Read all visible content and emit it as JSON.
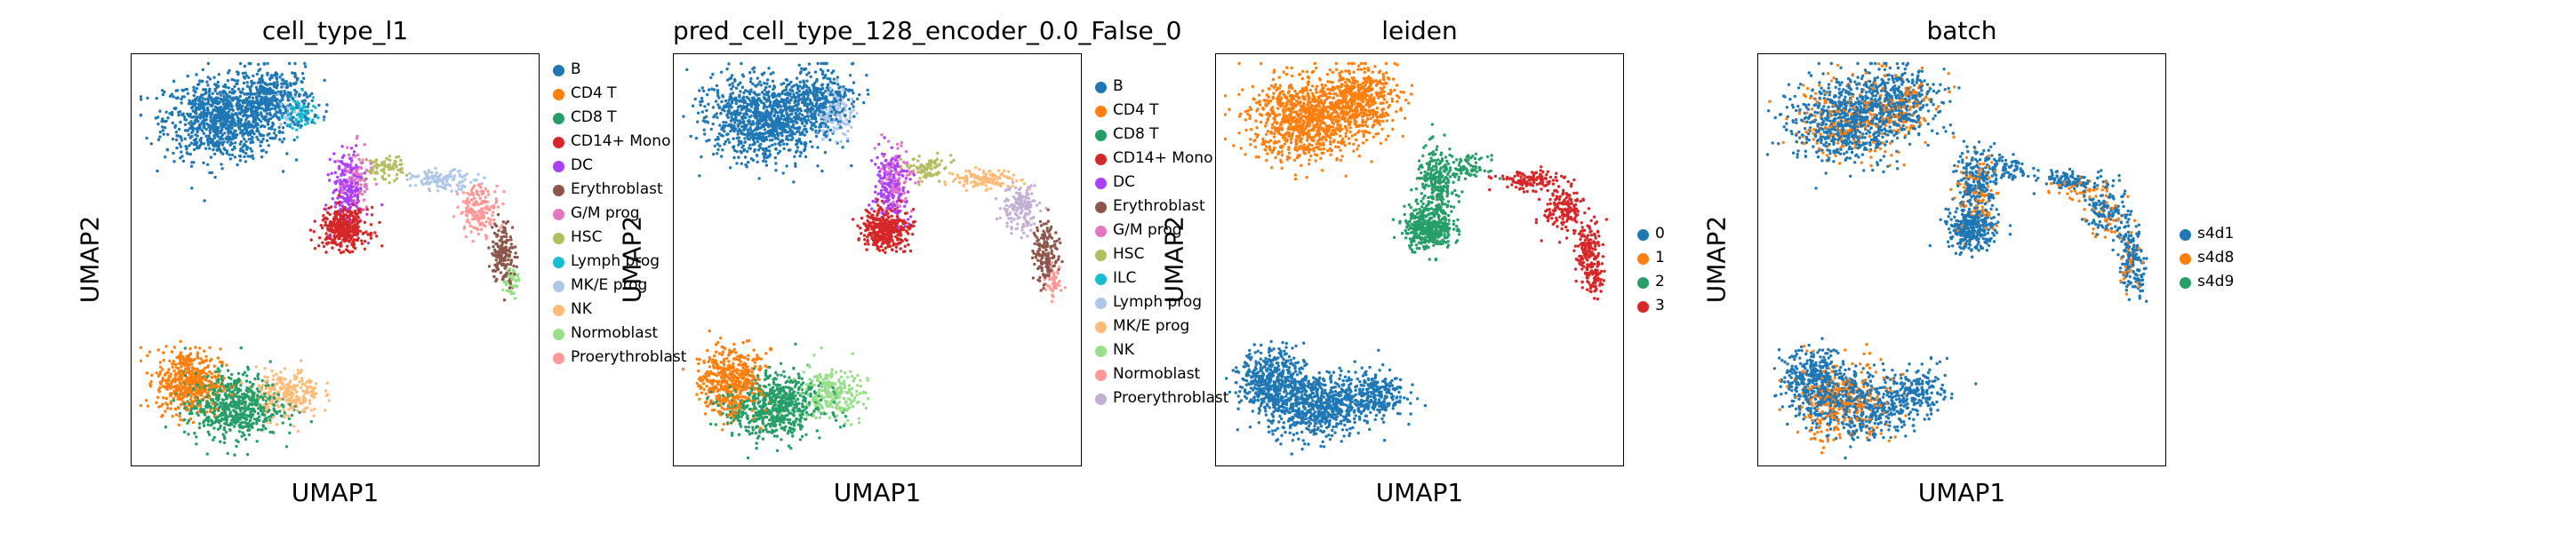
{
  "chart_data": [
    {
      "type": "scatter",
      "title": "cell_type_l1",
      "xlabel": "UMAP1",
      "ylabel": "UMAP2",
      "legend": [
        {
          "name": "B",
          "color": "#1f77b4"
        },
        {
          "name": "CD4 T",
          "color": "#ff7f0e"
        },
        {
          "name": "CD8 T",
          "color": "#279e68"
        },
        {
          "name": "CD14+ Mono",
          "color": "#d62728"
        },
        {
          "name": "DC",
          "color": "#aa40fc"
        },
        {
          "name": "Erythroblast",
          "color": "#8c564b"
        },
        {
          "name": "G/M prog",
          "color": "#e377c2"
        },
        {
          "name": "HSC",
          "color": "#b5bd61"
        },
        {
          "name": "Lymph prog",
          "color": "#17becf"
        },
        {
          "name": "MK/E prog",
          "color": "#aec7e8"
        },
        {
          "name": "NK",
          "color": "#ffbb78"
        },
        {
          "name": "Normoblast",
          "color": "#98df8a"
        },
        {
          "name": "Proerythroblast",
          "color": "#ff9896"
        }
      ],
      "legend_placement": "right",
      "grid": false,
      "clusters": [
        {
          "label": "B",
          "color": "#1f77b4",
          "x": 0.21,
          "y": 0.85,
          "sx": 0.07,
          "sy": 0.05,
          "n": 900
        },
        {
          "label": "B",
          "color": "#1f77b4",
          "x": 0.34,
          "y": 0.9,
          "sx": 0.05,
          "sy": 0.04,
          "n": 400
        },
        {
          "label": "Lymph prog",
          "color": "#17becf",
          "x": 0.41,
          "y": 0.86,
          "sx": 0.02,
          "sy": 0.025,
          "n": 70
        },
        {
          "label": "MK/E prog",
          "color": "#aec7e8",
          "x": 0.38,
          "y": 0.88,
          "sx": 0.02,
          "sy": 0.02,
          "n": 40
        },
        {
          "label": "CD4 T",
          "color": "#ff7f0e",
          "x": 0.13,
          "y": 0.2,
          "sx": 0.04,
          "sy": 0.04,
          "n": 500
        },
        {
          "label": "CD8 T",
          "color": "#279e68",
          "x": 0.24,
          "y": 0.14,
          "sx": 0.06,
          "sy": 0.04,
          "n": 650
        },
        {
          "label": "NK",
          "color": "#ffbb78",
          "x": 0.38,
          "y": 0.17,
          "sx": 0.04,
          "sy": 0.03,
          "n": 250
        },
        {
          "label": "CD14+ Mono",
          "color": "#d62728",
          "x": 0.52,
          "y": 0.58,
          "sx": 0.03,
          "sy": 0.025,
          "n": 380
        },
        {
          "label": "DC",
          "color": "#aa40fc",
          "x": 0.53,
          "y": 0.68,
          "sx": 0.02,
          "sy": 0.045,
          "n": 180
        },
        {
          "label": "G/M prog",
          "color": "#e377c2",
          "x": 0.55,
          "y": 0.7,
          "sx": 0.02,
          "sy": 0.04,
          "n": 90
        },
        {
          "label": "HSC",
          "color": "#b5bd61",
          "x": 0.62,
          "y": 0.73,
          "sx": 0.025,
          "sy": 0.015,
          "n": 80
        },
        {
          "label": "MK/E prog",
          "color": "#aec7e8",
          "x": 0.77,
          "y": 0.7,
          "sx": 0.04,
          "sy": 0.012,
          "n": 120
        },
        {
          "label": "Proerythroblast",
          "color": "#ff9896",
          "x": 0.86,
          "y": 0.63,
          "sx": 0.025,
          "sy": 0.03,
          "n": 160
        },
        {
          "label": "Erythroblast",
          "color": "#8c564b",
          "x": 0.92,
          "y": 0.52,
          "sx": 0.015,
          "sy": 0.04,
          "n": 160
        },
        {
          "label": "Normoblast",
          "color": "#98df8a",
          "x": 0.94,
          "y": 0.45,
          "sx": 0.01,
          "sy": 0.02,
          "n": 50
        }
      ]
    },
    {
      "type": "scatter",
      "title": "pred_cell_type_128_encoder_0.0_False_0",
      "xlabel": "UMAP1",
      "ylabel": "UMAP2",
      "legend": [
        {
          "name": "B",
          "color": "#1f77b4"
        },
        {
          "name": "CD4 T",
          "color": "#ff7f0e"
        },
        {
          "name": "CD8 T",
          "color": "#279e68"
        },
        {
          "name": "CD14+ Mono",
          "color": "#d62728"
        },
        {
          "name": "DC",
          "color": "#aa40fc"
        },
        {
          "name": "Erythroblast",
          "color": "#8c564b"
        },
        {
          "name": "G/M prog",
          "color": "#e377c2"
        },
        {
          "name": "HSC",
          "color": "#b5bd61"
        },
        {
          "name": "ILC",
          "color": "#17becf"
        },
        {
          "name": "Lymph prog",
          "color": "#aec7e8"
        },
        {
          "name": "MK/E prog",
          "color": "#ffbb78"
        },
        {
          "name": "NK",
          "color": "#98df8a"
        },
        {
          "name": "Normoblast",
          "color": "#ff9896"
        },
        {
          "name": "Proerythroblast",
          "color": "#c5b0d5"
        }
      ],
      "legend_placement": "right",
      "grid": false,
      "clusters": [
        {
          "label": "B",
          "color": "#1f77b4",
          "x": 0.21,
          "y": 0.85,
          "sx": 0.07,
          "sy": 0.05,
          "n": 900
        },
        {
          "label": "B",
          "color": "#1f77b4",
          "x": 0.34,
          "y": 0.9,
          "sx": 0.05,
          "sy": 0.04,
          "n": 380
        },
        {
          "label": "Lymph prog",
          "color": "#aec7e8",
          "x": 0.39,
          "y": 0.86,
          "sx": 0.025,
          "sy": 0.03,
          "n": 120
        },
        {
          "label": "CD4 T",
          "color": "#ff7f0e",
          "x": 0.13,
          "y": 0.2,
          "sx": 0.04,
          "sy": 0.04,
          "n": 500
        },
        {
          "label": "CD8 T",
          "color": "#279e68",
          "x": 0.24,
          "y": 0.14,
          "sx": 0.06,
          "sy": 0.04,
          "n": 650
        },
        {
          "label": "NK",
          "color": "#98df8a",
          "x": 0.38,
          "y": 0.17,
          "sx": 0.04,
          "sy": 0.03,
          "n": 250
        },
        {
          "label": "CD14+ Mono",
          "color": "#d62728",
          "x": 0.52,
          "y": 0.58,
          "sx": 0.03,
          "sy": 0.025,
          "n": 380
        },
        {
          "label": "DC",
          "color": "#aa40fc",
          "x": 0.53,
          "y": 0.68,
          "sx": 0.02,
          "sy": 0.045,
          "n": 180
        },
        {
          "label": "G/M prog",
          "color": "#e377c2",
          "x": 0.55,
          "y": 0.7,
          "sx": 0.02,
          "sy": 0.04,
          "n": 90
        },
        {
          "label": "HSC",
          "color": "#b5bd61",
          "x": 0.62,
          "y": 0.73,
          "sx": 0.025,
          "sy": 0.015,
          "n": 80
        },
        {
          "label": "MK/E prog",
          "color": "#ffbb78",
          "x": 0.77,
          "y": 0.7,
          "sx": 0.04,
          "sy": 0.012,
          "n": 120
        },
        {
          "label": "Proerythroblast",
          "color": "#c5b0d5",
          "x": 0.86,
          "y": 0.63,
          "sx": 0.025,
          "sy": 0.03,
          "n": 160
        },
        {
          "label": "Erythroblast",
          "color": "#8c564b",
          "x": 0.92,
          "y": 0.52,
          "sx": 0.015,
          "sy": 0.04,
          "n": 160
        },
        {
          "label": "Normoblast",
          "color": "#ff9896",
          "x": 0.94,
          "y": 0.45,
          "sx": 0.01,
          "sy": 0.02,
          "n": 50
        }
      ]
    },
    {
      "type": "scatter",
      "title": "leiden",
      "xlabel": "UMAP1",
      "ylabel": "UMAP2",
      "legend": [
        {
          "name": "0",
          "color": "#1f77b4"
        },
        {
          "name": "1",
          "color": "#ff7f0e"
        },
        {
          "name": "2",
          "color": "#279e68"
        },
        {
          "name": "3",
          "color": "#d62728"
        }
      ],
      "legend_placement": "right",
      "grid": false,
      "clusters": [
        {
          "label": "1",
          "color": "#ff7f0e",
          "x": 0.21,
          "y": 0.85,
          "sx": 0.07,
          "sy": 0.05,
          "n": 900
        },
        {
          "label": "1",
          "color": "#ff7f0e",
          "x": 0.34,
          "y": 0.9,
          "sx": 0.05,
          "sy": 0.04,
          "n": 500
        },
        {
          "label": "0",
          "color": "#1f77b4",
          "x": 0.13,
          "y": 0.2,
          "sx": 0.04,
          "sy": 0.04,
          "n": 500
        },
        {
          "label": "0",
          "color": "#1f77b4",
          "x": 0.24,
          "y": 0.14,
          "sx": 0.06,
          "sy": 0.04,
          "n": 650
        },
        {
          "label": "0",
          "color": "#1f77b4",
          "x": 0.38,
          "y": 0.17,
          "sx": 0.04,
          "sy": 0.03,
          "n": 250
        },
        {
          "label": "2",
          "color": "#279e68",
          "x": 0.52,
          "y": 0.58,
          "sx": 0.03,
          "sy": 0.025,
          "n": 380
        },
        {
          "label": "2",
          "color": "#279e68",
          "x": 0.54,
          "y": 0.69,
          "sx": 0.025,
          "sy": 0.045,
          "n": 270
        },
        {
          "label": "2",
          "color": "#279e68",
          "x": 0.62,
          "y": 0.73,
          "sx": 0.025,
          "sy": 0.015,
          "n": 80
        },
        {
          "label": "3",
          "color": "#d62728",
          "x": 0.77,
          "y": 0.7,
          "sx": 0.04,
          "sy": 0.012,
          "n": 120
        },
        {
          "label": "3",
          "color": "#d62728",
          "x": 0.86,
          "y": 0.63,
          "sx": 0.025,
          "sy": 0.03,
          "n": 160
        },
        {
          "label": "3",
          "color": "#d62728",
          "x": 0.92,
          "y": 0.52,
          "sx": 0.015,
          "sy": 0.04,
          "n": 160
        },
        {
          "label": "3",
          "color": "#d62728",
          "x": 0.94,
          "y": 0.45,
          "sx": 0.01,
          "sy": 0.02,
          "n": 50
        }
      ]
    },
    {
      "type": "scatter",
      "title": "batch",
      "xlabel": "UMAP1",
      "ylabel": "UMAP2",
      "legend": [
        {
          "name": "s4d1",
          "color": "#1f77b4"
        },
        {
          "name": "s4d8",
          "color": "#ff7f0e"
        },
        {
          "name": "s4d9",
          "color": "#279e68"
        }
      ],
      "legend_placement": "right",
      "grid": false,
      "clusters": [
        {
          "label": "s4d1",
          "color": "#1f77b4",
          "x": 0.21,
          "y": 0.85,
          "sx": 0.07,
          "sy": 0.05,
          "n": 700
        },
        {
          "label": "s4d8",
          "color": "#ff7f0e",
          "x": 0.21,
          "y": 0.85,
          "sx": 0.07,
          "sy": 0.05,
          "n": 200
        },
        {
          "label": "s4d1",
          "color": "#1f77b4",
          "x": 0.34,
          "y": 0.9,
          "sx": 0.05,
          "sy": 0.04,
          "n": 350
        },
        {
          "label": "s4d8",
          "color": "#ff7f0e",
          "x": 0.34,
          "y": 0.88,
          "sx": 0.05,
          "sy": 0.04,
          "n": 120
        },
        {
          "label": "s4d1",
          "color": "#1f77b4",
          "x": 0.13,
          "y": 0.2,
          "sx": 0.04,
          "sy": 0.04,
          "n": 380
        },
        {
          "label": "s4d1",
          "color": "#1f77b4",
          "x": 0.24,
          "y": 0.14,
          "sx": 0.06,
          "sy": 0.04,
          "n": 450
        },
        {
          "label": "s4d8",
          "color": "#ff7f0e",
          "x": 0.2,
          "y": 0.15,
          "sx": 0.06,
          "sy": 0.05,
          "n": 320
        },
        {
          "label": "s4d1",
          "color": "#1f77b4",
          "x": 0.38,
          "y": 0.17,
          "sx": 0.04,
          "sy": 0.03,
          "n": 200
        },
        {
          "label": "s4d1",
          "color": "#1f77b4",
          "x": 0.52,
          "y": 0.58,
          "sx": 0.03,
          "sy": 0.025,
          "n": 300
        },
        {
          "label": "s4d1",
          "color": "#1f77b4",
          "x": 0.54,
          "y": 0.69,
          "sx": 0.025,
          "sy": 0.045,
          "n": 220
        },
        {
          "label": "s4d8",
          "color": "#ff7f0e",
          "x": 0.54,
          "y": 0.66,
          "sx": 0.03,
          "sy": 0.05,
          "n": 90
        },
        {
          "label": "s4d1",
          "color": "#1f77b4",
          "x": 0.62,
          "y": 0.73,
          "sx": 0.025,
          "sy": 0.015,
          "n": 70
        },
        {
          "label": "s4d1",
          "color": "#1f77b4",
          "x": 0.77,
          "y": 0.7,
          "sx": 0.04,
          "sy": 0.012,
          "n": 100
        },
        {
          "label": "s4d8",
          "color": "#ff7f0e",
          "x": 0.8,
          "y": 0.68,
          "sx": 0.04,
          "sy": 0.015,
          "n": 40
        },
        {
          "label": "s4d1",
          "color": "#1f77b4",
          "x": 0.86,
          "y": 0.63,
          "sx": 0.025,
          "sy": 0.03,
          "n": 120
        },
        {
          "label": "s4d8",
          "color": "#ff7f0e",
          "x": 0.86,
          "y": 0.6,
          "sx": 0.025,
          "sy": 0.03,
          "n": 40
        },
        {
          "label": "s4d1",
          "color": "#1f77b4",
          "x": 0.92,
          "y": 0.52,
          "sx": 0.015,
          "sy": 0.04,
          "n": 130
        },
        {
          "label": "s4d8",
          "color": "#ff7f0e",
          "x": 0.91,
          "y": 0.5,
          "sx": 0.015,
          "sy": 0.04,
          "n": 30
        },
        {
          "label": "s4d1",
          "color": "#1f77b4",
          "x": 0.94,
          "y": 0.45,
          "sx": 0.01,
          "sy": 0.02,
          "n": 40
        }
      ]
    }
  ]
}
